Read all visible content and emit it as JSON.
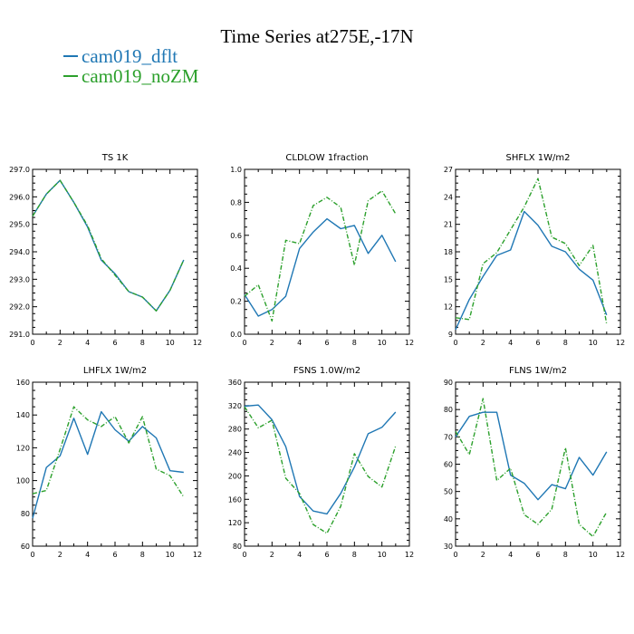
{
  "title": "Time Series at275E,-17N",
  "legend": [
    {
      "label": "cam019_dflt",
      "color": "#1f77b4"
    },
    {
      "label": "cam019_noZM",
      "color": "#2ca02c"
    }
  ],
  "chart_data": [
    {
      "type": "line",
      "title": "TS   1K",
      "x": [
        0,
        1,
        2,
        3,
        4,
        5,
        6,
        7,
        8,
        9,
        10,
        11
      ],
      "xlim": [
        0,
        12
      ],
      "xticks": [
        0,
        2,
        4,
        6,
        8,
        10,
        12
      ],
      "ylim": [
        291.0,
        297.0
      ],
      "yticks": [
        291.0,
        292.0,
        293.0,
        294.0,
        295.0,
        296.0,
        297.0
      ],
      "ytick_labels": [
        "291.0",
        "292.0",
        "293.0",
        "294.0",
        "295.0",
        "296.0",
        "297.0"
      ],
      "series": [
        {
          "name": "cam019_dflt",
          "values": [
            295.3,
            296.1,
            296.6,
            295.8,
            294.9,
            293.7,
            293.2,
            292.55,
            292.35,
            291.85,
            292.6,
            293.7
          ]
        },
        {
          "name": "cam019_noZM",
          "values": [
            295.3,
            296.1,
            296.6,
            295.8,
            294.95,
            293.75,
            293.15,
            292.55,
            292.35,
            291.85,
            292.6,
            293.7
          ]
        }
      ]
    },
    {
      "type": "line",
      "title": "CLDLOW   1fraction",
      "x": [
        0,
        1,
        2,
        3,
        4,
        5,
        6,
        7,
        8,
        9,
        10,
        11
      ],
      "xlim": [
        0,
        12
      ],
      "xticks": [
        0,
        2,
        4,
        6,
        8,
        10,
        12
      ],
      "ylim": [
        0.0,
        1.0
      ],
      "yticks": [
        0.0,
        0.2,
        0.4,
        0.6,
        0.8,
        1.0
      ],
      "ytick_labels": [
        "0.0",
        "0.2",
        "0.4",
        "0.6",
        "0.8",
        "1.0"
      ],
      "series": [
        {
          "name": "cam019_dflt",
          "values": [
            0.24,
            0.11,
            0.15,
            0.23,
            0.52,
            0.62,
            0.7,
            0.64,
            0.66,
            0.49,
            0.6,
            0.44
          ]
        },
        {
          "name": "cam019_noZM",
          "values": [
            0.23,
            0.3,
            0.08,
            0.57,
            0.55,
            0.78,
            0.83,
            0.77,
            0.42,
            0.81,
            0.87,
            0.73
          ]
        }
      ]
    },
    {
      "type": "line",
      "title": "SHFLX   1W/m2",
      "x": [
        0,
        1,
        2,
        3,
        4,
        5,
        6,
        7,
        8,
        9,
        10,
        11
      ],
      "xlim": [
        0,
        12
      ],
      "xticks": [
        0,
        2,
        4,
        6,
        8,
        10,
        12
      ],
      "ylim": [
        9,
        27
      ],
      "yticks": [
        9,
        12,
        15,
        18,
        21,
        24,
        27
      ],
      "ytick_labels": [
        "9",
        "12",
        "15",
        "18",
        "21",
        "24",
        "27"
      ],
      "series": [
        {
          "name": "cam019_dflt",
          "values": [
            9.5,
            12.8,
            15.3,
            17.6,
            18.2,
            22.4,
            20.9,
            18.6,
            18.0,
            16.1,
            14.9,
            11.1
          ]
        },
        {
          "name": "cam019_noZM",
          "values": [
            10.8,
            10.6,
            16.7,
            17.9,
            20.4,
            22.9,
            26.0,
            19.6,
            18.9,
            16.5,
            18.7,
            10.1
          ]
        }
      ]
    },
    {
      "type": "line",
      "title": "LHFLX   1W/m2",
      "x": [
        0,
        1,
        2,
        3,
        4,
        5,
        6,
        7,
        8,
        9,
        10,
        11
      ],
      "xlim": [
        0,
        12
      ],
      "xticks": [
        0,
        2,
        4,
        6,
        8,
        10,
        12
      ],
      "ylim": [
        60,
        160
      ],
      "yticks": [
        60,
        80,
        100,
        120,
        140,
        160
      ],
      "ytick_labels": [
        "60",
        "80",
        "100",
        "120",
        "140",
        "160"
      ],
      "series": [
        {
          "name": "cam019_dflt",
          "values": [
            77,
            108,
            115,
            138,
            116,
            142,
            131,
            124,
            133,
            126,
            106,
            105
          ]
        },
        {
          "name": "cam019_noZM",
          "values": [
            92,
            94,
            119,
            145,
            137,
            133,
            139,
            123,
            139,
            107,
            103,
            90
          ]
        }
      ]
    },
    {
      "type": "line",
      "title": "FSNS   1.0W/m2",
      "x": [
        0,
        1,
        2,
        3,
        4,
        5,
        6,
        7,
        8,
        9,
        10,
        11
      ],
      "xlim": [
        0,
        12
      ],
      "xticks": [
        0,
        2,
        4,
        6,
        8,
        10,
        12
      ],
      "ylim": [
        80,
        360
      ],
      "yticks": [
        80,
        120,
        160,
        200,
        240,
        280,
        320,
        360
      ],
      "ytick_labels": [
        "80",
        "120",
        "160",
        "200",
        "240",
        "280",
        "320",
        "360"
      ],
      "series": [
        {
          "name": "cam019_dflt",
          "values": [
            319,
            321,
            296,
            250,
            165,
            140,
            135,
            170,
            215,
            272,
            283,
            309
          ]
        },
        {
          "name": "cam019_noZM",
          "values": [
            318,
            282,
            295,
            196,
            170,
            117,
            102,
            148,
            238,
            199,
            181,
            251
          ]
        }
      ]
    },
    {
      "type": "line",
      "title": "FLNS   1W/m2",
      "x": [
        0,
        1,
        2,
        3,
        4,
        5,
        6,
        7,
        8,
        9,
        10,
        11
      ],
      "xlim": [
        0,
        12
      ],
      "xticks": [
        0,
        2,
        4,
        6,
        8,
        10,
        12
      ],
      "ylim": [
        30,
        90
      ],
      "yticks": [
        30,
        40,
        50,
        60,
        70,
        80,
        90
      ],
      "ytick_labels": [
        "30",
        "40",
        "50",
        "60",
        "70",
        "80",
        "90"
      ],
      "series": [
        {
          "name": "cam019_dflt",
          "values": [
            70,
            77.5,
            79,
            79,
            56,
            53,
            47,
            52.5,
            51,
            62.5,
            56,
            64.5
          ]
        },
        {
          "name": "cam019_noZM",
          "values": [
            72,
            63.5,
            84,
            54,
            58.5,
            41.5,
            38,
            43.5,
            66,
            38,
            33.5,
            42.5
          ]
        }
      ]
    }
  ]
}
